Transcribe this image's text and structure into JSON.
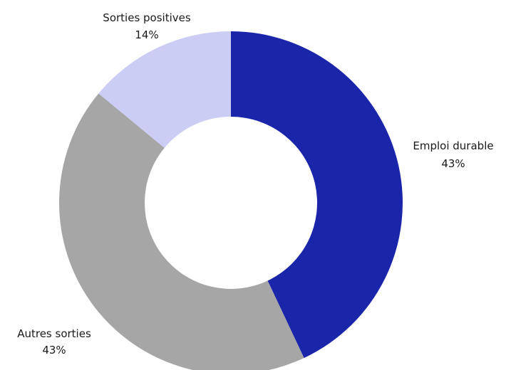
{
  "chart_data": {
    "type": "pie",
    "donut": true,
    "title": "",
    "categories": [
      "Emploi durable",
      "Autres sorties",
      "Sorties positives"
    ],
    "values": [
      43,
      43,
      14
    ],
    "labels": [
      "43%",
      "43%",
      "14%"
    ],
    "colors": [
      "#1a25aa",
      "#a6a6a6",
      "#cbcdf5"
    ],
    "legend": "none"
  }
}
